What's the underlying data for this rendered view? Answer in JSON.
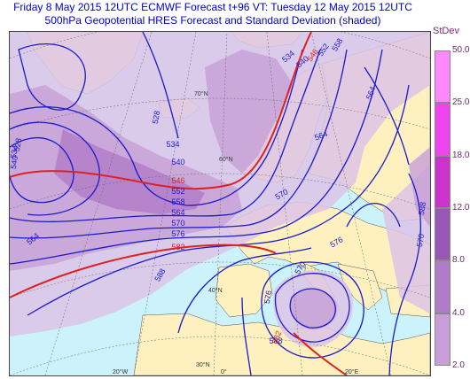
{
  "title": {
    "line1": "Friday 8 May 2015 12UTC ECMWF Forecast t+96  VT: Tuesday 12 May 2015 12UTC",
    "line2": "500hPa Geopotential HRES Forecast and Standard Deviation (shaded)"
  },
  "legend": {
    "title": "StDev",
    "ticks": [
      "50.0",
      "25.0",
      "18.0",
      "12.0",
      "8.0",
      "4.0",
      "2.0"
    ]
  },
  "colors": {
    "ocean": "#ccf2fb",
    "land": "#fff0c0",
    "stdev_levels": [
      "#ddc4e6",
      "#c79fd6",
      "#b07bc7",
      "#9857b6",
      "#cc33cc",
      "#ee44ee",
      "#ff88ff"
    ],
    "contour": "#1a1acc",
    "contour_highlight": "#dd2222",
    "graticule": "#666666"
  },
  "map": {
    "contour_labels": [
      {
        "text": "534",
        "color": "contour"
      },
      {
        "text": "540",
        "color": "contour"
      },
      {
        "text": "546",
        "color": "contour_highlight"
      },
      {
        "text": "552",
        "color": "contour"
      },
      {
        "text": "558",
        "color": "contour"
      },
      {
        "text": "564",
        "color": "contour"
      },
      {
        "text": "528",
        "color": "contour"
      },
      {
        "text": "534",
        "color": "contour"
      },
      {
        "text": "540",
        "color": "contour"
      },
      {
        "text": "546",
        "color": "contour_highlight"
      },
      {
        "text": "552",
        "color": "contour"
      },
      {
        "text": "558",
        "color": "contour"
      },
      {
        "text": "564",
        "color": "contour"
      },
      {
        "text": "570",
        "color": "contour"
      },
      {
        "text": "576",
        "color": "contour"
      },
      {
        "text": "582",
        "color": "contour_highlight"
      },
      {
        "text": "588",
        "color": "contour"
      },
      {
        "text": "564",
        "color": "contour"
      },
      {
        "text": "570",
        "color": "contour"
      },
      {
        "text": "570",
        "color": "contour"
      },
      {
        "text": "576",
        "color": "contour"
      },
      {
        "text": "576",
        "color": "contour"
      },
      {
        "text": "570",
        "color": "contour"
      },
      {
        "text": "588",
        "color": "contour"
      },
      {
        "text": "582",
        "color": "contour_highlight"
      },
      {
        "text": "588",
        "color": "contour"
      },
      {
        "text": "540",
        "color": "contour"
      },
      {
        "text": "534",
        "color": "contour"
      },
      {
        "text": "528",
        "color": "contour"
      },
      {
        "text": "564",
        "color": "contour"
      }
    ],
    "lat_labels": [
      "70°N",
      "60°N",
      "40°N",
      "30°N"
    ],
    "lon_labels": [
      "20°W",
      "0°",
      "20°E"
    ]
  }
}
